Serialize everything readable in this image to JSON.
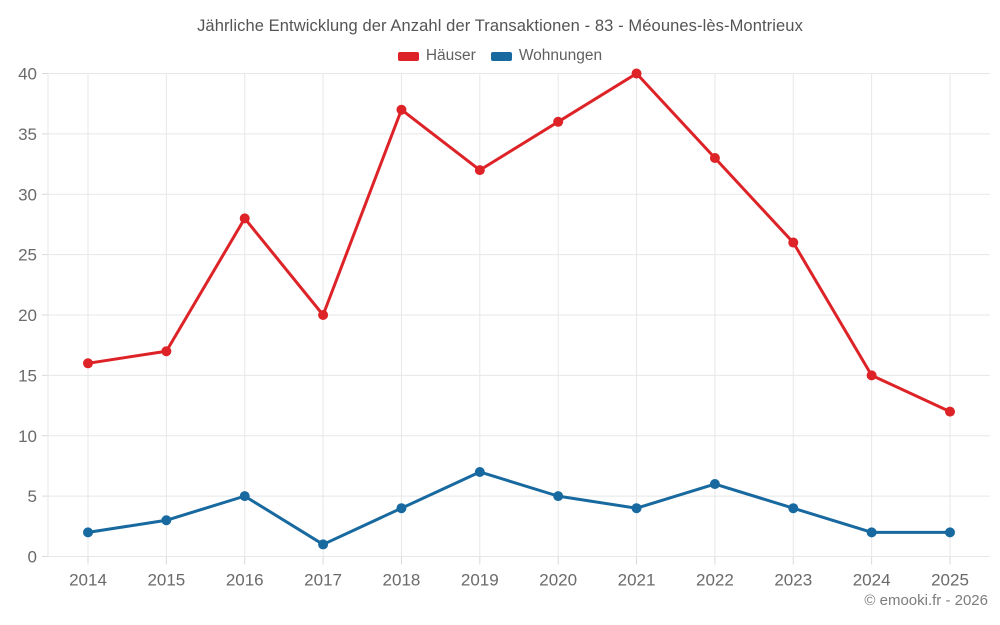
{
  "title": "Jährliche Entwicklung der Anzahl der Transaktionen - 83 - Méounes-lès-Montrieux",
  "footer": "© emooki.fr - 2026",
  "chart_data": {
    "type": "line",
    "title": "Jährliche Entwicklung der Anzahl der Transaktionen - 83 - Méounes-lès-Montrieux",
    "categories": [
      "2014",
      "2015",
      "2016",
      "2017",
      "2018",
      "2019",
      "2020",
      "2021",
      "2022",
      "2023",
      "2024",
      "2025"
    ],
    "series": [
      {
        "name": "Häuser",
        "color": "#dd2327",
        "values": [
          16,
          17,
          28,
          20,
          37,
          32,
          36,
          40,
          33,
          26,
          15,
          12
        ]
      },
      {
        "name": "Wohnungen",
        "color": "#17699f",
        "values": [
          2,
          3,
          5,
          1,
          4,
          7,
          5,
          4,
          6,
          4,
          2,
          2
        ]
      }
    ],
    "xlabel": "",
    "ylabel": "",
    "ylim": [
      0,
      40
    ],
    "ytick_step": 5,
    "grid": true,
    "legend_position": "top"
  },
  "colors": {
    "grid": "#e7e7e7",
    "tick": "#d9d9d9",
    "axis_text": "#6a6a6a",
    "background": "#ffffff"
  }
}
